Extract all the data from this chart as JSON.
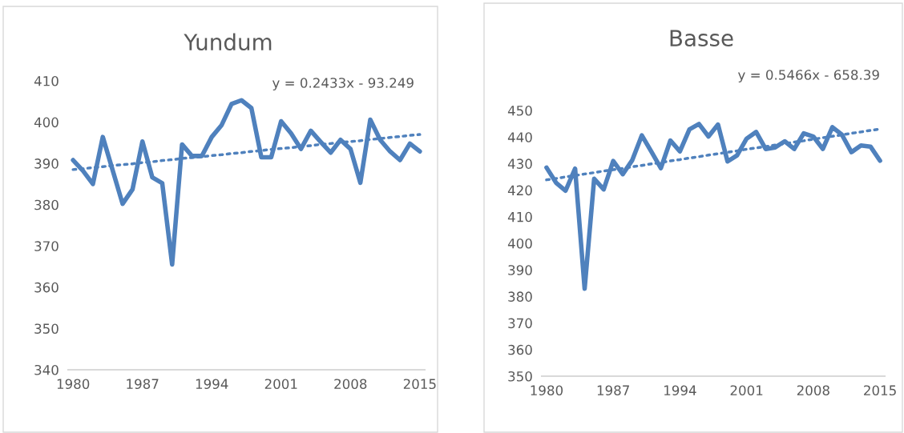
{
  "chart_data": [
    {
      "type": "line",
      "title": "Yundum",
      "annotations": [
        "y = 0.2433x - 93.249"
      ],
      "x": [
        1980,
        1981,
        1982,
        1983,
        1984,
        1985,
        1986,
        1987,
        1988,
        1989,
        1990,
        1991,
        1992,
        1993,
        1994,
        1995,
        1996,
        1997,
        1998,
        1999,
        2000,
        2001,
        2002,
        2003,
        2004,
        2005,
        2006,
        2007,
        2008,
        2009,
        2010,
        2011,
        2012,
        2013,
        2014,
        2015
      ],
      "series": [
        {
          "color": "#4f81bd",
          "line_style": "solid",
          "values": [
            390.8,
            388.2,
            385.0,
            396.4,
            388.3,
            380.2,
            383.7,
            395.3,
            386.6,
            385.2,
            365.5,
            394.6,
            391.8,
            391.8,
            396.4,
            399.3,
            404.4,
            405.3,
            403.4,
            391.5,
            391.5,
            400.2,
            397.3,
            393.5,
            397.9,
            395.2,
            392.6,
            395.7,
            393.5,
            385.3,
            400.6,
            395.7,
            392.9,
            390.8,
            394.8,
            392.9
          ]
        },
        {
          "color": "#4f81bd",
          "line_style": "dotted",
          "values": [
            388.5,
            388.7,
            389.0,
            389.2,
            389.5,
            389.7,
            389.9,
            390.2,
            390.4,
            390.7,
            390.9,
            391.2,
            391.4,
            391.6,
            391.9,
            392.1,
            392.4,
            392.6,
            392.9,
            393.1,
            393.4,
            393.6,
            393.8,
            394.1,
            394.3,
            394.6,
            394.8,
            395.1,
            395.3,
            395.5,
            395.8,
            396.0,
            396.3,
            396.5,
            396.8,
            397.0
          ]
        }
      ],
      "xlim": [
        1979.5,
        2015.5
      ],
      "xticks": [
        1980,
        1987,
        1994,
        2001,
        2008,
        2015
      ],
      "ylim": [
        340,
        410
      ],
      "yticks": [
        340,
        350,
        360,
        370,
        380,
        390,
        400,
        410
      ],
      "grid": false,
      "legend": false
    },
    {
      "type": "line",
      "title": "Basse",
      "annotations": [
        "y = 0.5466x - 658.39"
      ],
      "x": [
        1980,
        1981,
        1982,
        1983,
        1984,
        1985,
        1986,
        1987,
        1988,
        1989,
        1990,
        1991,
        1992,
        1993,
        1994,
        1995,
        1996,
        1997,
        1998,
        1999,
        2000,
        2001,
        2002,
        2003,
        2004,
        2005,
        2006,
        2007,
        2008,
        2009,
        2010,
        2011,
        2012,
        2013,
        2014,
        2015
      ],
      "series": [
        {
          "color": "#4f81bd",
          "line_style": "solid",
          "values": [
            428.5,
            422.8,
            419.8,
            428.1,
            382.9,
            424.3,
            420.3,
            431.0,
            426.0,
            431.3,
            440.6,
            434.5,
            428.3,
            438.7,
            434.6,
            442.9,
            444.9,
            440.2,
            444.7,
            430.8,
            433.1,
            439.4,
            441.9,
            435.5,
            436.1,
            438.4,
            435.5,
            441.4,
            440.2,
            435.5,
            443.7,
            440.9,
            434.3,
            436.8,
            436.4,
            431.1
          ]
        },
        {
          "color": "#4f81bd",
          "line_style": "dotted",
          "values": [
            423.9,
            424.4,
            425.0,
            425.5,
            426.1,
            426.6,
            427.2,
            427.7,
            428.2,
            428.8,
            429.3,
            429.9,
            430.4,
            431.0,
            431.5,
            432.1,
            432.6,
            433.2,
            433.7,
            434.3,
            434.8,
            435.4,
            435.9,
            436.4,
            437.0,
            437.5,
            438.1,
            438.6,
            439.2,
            439.7,
            440.3,
            440.8,
            441.4,
            441.9,
            442.5,
            443.0
          ]
        }
      ],
      "xlim": [
        1979.5,
        2015.5
      ],
      "xticks": [
        1980,
        1987,
        1994,
        2001,
        2008,
        2015
      ],
      "ylim": [
        350,
        450
      ],
      "yticks": [
        350,
        360,
        370,
        380,
        390,
        400,
        410,
        420,
        430,
        440,
        450
      ],
      "grid": false,
      "legend": false
    }
  ]
}
